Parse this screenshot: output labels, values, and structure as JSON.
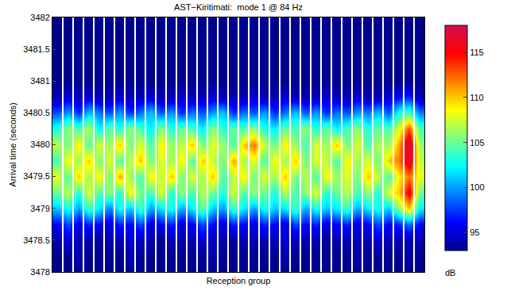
{
  "chart_data": {
    "type": "heatmap",
    "title": "AST−Kiritimati:  mode 1 @ 84 Hz",
    "x_label": "Reception group",
    "y_label": "Arrival time (seconds)",
    "colorbar_label": "dB",
    "tick_labels": "y",
    "x": [
      1,
      2,
      3,
      4,
      5,
      6,
      7,
      8,
      9,
      10,
      11,
      12,
      13,
      14,
      15,
      16,
      17,
      18,
      19,
      20,
      21,
      22,
      23,
      24,
      25,
      26,
      27,
      28,
      29,
      30,
      31,
      32,
      33,
      34,
      35,
      36
    ],
    "xlim": [
      0.5,
      36.5
    ],
    "y": [
      3478,
      3478.25,
      3478.5,
      3478.75,
      3479,
      3479.25,
      3479.5,
      3479.75,
      3480,
      3480.25,
      3480.5,
      3480.75,
      3481,
      3481.25,
      3481.5,
      3481.75,
      3482
    ],
    "ylim": [
      3478,
      3482
    ],
    "yticks": [
      3478,
      3478.5,
      3479,
      3479.5,
      3480,
      3480.5,
      3481,
      3481.5,
      3482
    ],
    "zlim": [
      93,
      118
    ],
    "zticks": [
      95,
      100,
      105,
      110,
      115
    ],
    "z": [
      [
        93,
        93,
        93,
        93,
        93,
        93,
        93,
        93,
        93,
        93,
        93,
        93,
        93,
        93,
        93,
        93,
        93,
        93,
        93,
        93,
        93,
        93,
        93,
        93,
        93,
        93,
        93,
        93,
        93,
        93,
        93,
        93,
        93,
        93,
        93,
        93
      ],
      [
        93,
        93,
        94,
        93,
        93,
        93,
        93,
        94,
        93,
        93,
        93,
        93,
        93,
        93,
        93,
        94,
        93,
        93,
        93,
        93,
        93,
        93,
        94,
        93,
        93,
        93,
        93,
        93,
        93,
        94,
        93,
        93,
        93,
        93,
        94,
        93
      ],
      [
        94,
        95,
        94,
        94,
        93,
        94,
        94,
        95,
        94,
        94,
        93,
        94,
        94,
        94,
        95,
        94,
        94,
        93,
        94,
        94,
        94,
        94,
        95,
        94,
        94,
        94,
        93,
        94,
        94,
        94,
        94,
        95,
        94,
        94,
        94,
        94
      ],
      [
        96,
        98,
        95,
        97,
        96,
        95,
        97,
        96,
        98,
        95,
        96,
        97,
        95,
        96,
        98,
        96,
        95,
        97,
        96,
        95,
        97,
        96,
        95,
        98,
        96,
        97,
        95,
        96,
        97,
        95,
        96,
        98,
        96,
        97,
        99,
        96
      ],
      [
        101,
        103,
        100,
        104,
        102,
        99,
        103,
        101,
        104,
        100,
        102,
        103,
        100,
        102,
        105,
        101,
        100,
        104,
        102,
        100,
        103,
        101,
        102,
        104,
        100,
        103,
        101,
        102,
        104,
        100,
        102,
        103,
        101,
        106,
        110,
        102
      ],
      [
        105,
        107,
        103,
        108,
        104,
        106,
        103,
        109,
        105,
        104,
        108,
        103,
        106,
        104,
        107,
        105,
        103,
        108,
        104,
        106,
        105,
        103,
        107,
        104,
        106,
        108,
        103,
        105,
        107,
        104,
        106,
        103,
        108,
        110,
        116,
        105
      ],
      [
        108,
        104,
        110,
        106,
        109,
        105,
        111,
        106,
        104,
        109,
        107,
        110,
        105,
        108,
        106,
        110,
        104,
        107,
        109,
        105,
        108,
        106,
        110,
        105,
        107,
        104,
        109,
        106,
        108,
        105,
        110,
        107,
        104,
        109,
        112,
        108
      ],
      [
        104,
        109,
        106,
        110,
        105,
        108,
        104,
        107,
        110,
        105,
        108,
        106,
        109,
        104,
        110,
        107,
        105,
        111,
        106,
        108,
        104,
        109,
        106,
        110,
        105,
        108,
        107,
        104,
        109,
        106,
        108,
        105,
        110,
        112,
        117,
        107
      ],
      [
        107,
        105,
        109,
        104,
        108,
        106,
        110,
        105,
        108,
        104,
        109,
        106,
        107,
        110,
        105,
        108,
        106,
        104,
        110,
        112,
        107,
        105,
        109,
        106,
        104,
        108,
        106,
        110,
        105,
        108,
        104,
        107,
        106,
        111,
        118,
        106
      ],
      [
        103,
        106,
        104,
        107,
        102,
        105,
        103,
        106,
        104,
        102,
        106,
        103,
        105,
        104,
        102,
        106,
        103,
        105,
        104,
        106,
        103,
        102,
        105,
        104,
        106,
        103,
        105,
        102,
        104,
        106,
        103,
        105,
        104,
        108,
        113,
        104
      ],
      [
        98,
        100,
        97,
        101,
        99,
        98,
        100,
        97,
        99,
        101,
        98,
        100,
        97,
        99,
        98,
        100,
        101,
        97,
        99,
        98,
        100,
        97,
        99,
        101,
        98,
        100,
        97,
        99,
        98,
        100,
        99,
        101,
        98,
        103,
        104,
        99
      ],
      [
        94,
        95,
        94,
        95,
        94,
        94,
        95,
        94,
        94,
        95,
        94,
        94,
        95,
        94,
        94,
        95,
        94,
        94,
        94,
        95,
        94,
        94,
        95,
        94,
        94,
        94,
        95,
        94,
        94,
        95,
        94,
        94,
        95,
        96,
        97,
        94
      ],
      [
        93,
        93,
        93,
        93,
        93,
        93,
        93,
        93,
        93,
        93,
        93,
        93,
        93,
        93,
        93,
        93,
        93,
        93,
        93,
        93,
        93,
        93,
        93,
        93,
        93,
        93,
        93,
        93,
        93,
        93,
        93,
        93,
        93,
        93,
        93,
        93
      ],
      [
        93,
        93,
        93,
        93,
        93,
        93,
        93,
        93,
        93,
        93,
        93,
        93,
        93,
        93,
        93,
        93,
        93,
        93,
        93,
        93,
        93,
        93,
        93,
        93,
        93,
        93,
        93,
        93,
        93,
        93,
        93,
        93,
        93,
        93,
        93,
        93
      ],
      [
        93,
        93,
        93,
        93,
        93,
        93,
        93,
        93,
        93,
        93,
        93,
        93,
        93,
        93,
        93,
        93,
        93,
        93,
        93,
        93,
        93,
        93,
        93,
        93,
        93,
        93,
        93,
        93,
        93,
        93,
        93,
        93,
        93,
        93,
        93,
        93
      ],
      [
        93,
        93,
        93,
        93,
        93,
        93,
        93,
        93,
        93,
        93,
        93,
        93,
        93,
        93,
        93,
        93,
        93,
        93,
        93,
        93,
        93,
        93,
        93,
        93,
        93,
        93,
        93,
        93,
        93,
        93,
        93,
        93,
        93,
        93,
        93,
        93
      ],
      [
        93,
        93,
        93,
        93,
        93,
        93,
        93,
        93,
        93,
        93,
        93,
        93,
        93,
        93,
        93,
        93,
        93,
        93,
        93,
        93,
        93,
        93,
        93,
        93,
        93,
        93,
        93,
        93,
        93,
        93,
        93,
        93,
        93,
        93,
        93,
        93
      ]
    ]
  }
}
